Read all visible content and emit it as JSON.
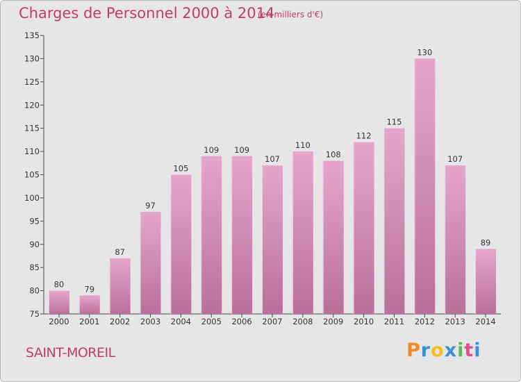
{
  "header": {
    "title": "Charges de Personnel 2000 à 2014",
    "subtitle": "(en milliers d'€)"
  },
  "footer": {
    "town": "SAINT-MOREIL",
    "logo": "Proxiti"
  },
  "colors": {
    "title": "#c23b6c",
    "bar_top": "#e6a6cc",
    "bar_bottom": "#b9709a",
    "background": "#e6e6e6",
    "logo_letters": [
      "#f08a24",
      "#3a8fd9",
      "#f0c020",
      "#3a8fd9",
      "#5cb85c",
      "#e84b8a",
      "#3a8fd9"
    ]
  },
  "chart_data": {
    "type": "bar",
    "title": "Charges de Personnel 2000 à 2014",
    "subtitle": "(en milliers d'€)",
    "categories": [
      "2000",
      "2001",
      "2002",
      "2003",
      "2004",
      "2005",
      "2006",
      "2007",
      "2008",
      "2009",
      "2010",
      "2011",
      "2012",
      "2013",
      "2014"
    ],
    "values": [
      80,
      79,
      87,
      97,
      105,
      109,
      109,
      107,
      110,
      108,
      112,
      115,
      130,
      107,
      89
    ],
    "xlabel": "",
    "ylabel": "",
    "ylim": [
      75,
      135
    ],
    "yticks": [
      75,
      80,
      85,
      90,
      95,
      100,
      105,
      110,
      115,
      120,
      125,
      130,
      135
    ],
    "grid": false,
    "legend": "none",
    "data_labels": true
  }
}
